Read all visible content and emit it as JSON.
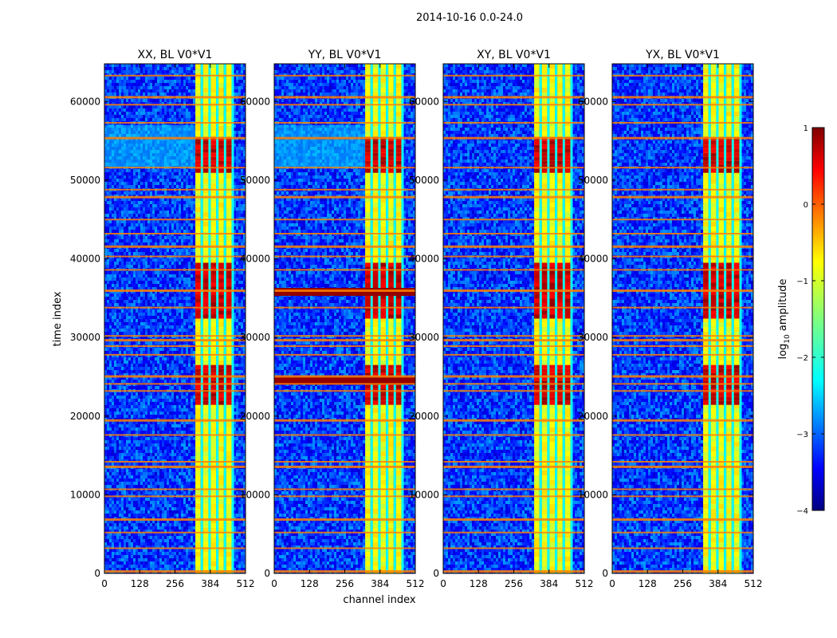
{
  "chart_data": {
    "type": "heatmap",
    "suptitle": "2014-10-16 0.0-24.0",
    "xlabel": "channel index",
    "ylabel": "time index",
    "xlim": [
      0,
      512
    ],
    "ylim": [
      0,
      64800
    ],
    "xticks": [
      0,
      128,
      256,
      384,
      512
    ],
    "yticks": [
      0,
      10000,
      20000,
      30000,
      40000,
      50000,
      60000
    ],
    "panels": [
      {
        "title": "XX, BL V0*V1",
        "pol": "XX"
      },
      {
        "title": "YY, BL V0*V1",
        "pol": "YY"
      },
      {
        "title": "XY, BL V0*V1",
        "pol": "XY"
      },
      {
        "title": "YX, BL V0*V1",
        "pol": "YX"
      }
    ],
    "colorbar": {
      "label": "log10 amplitude",
      "label_base": "log",
      "label_sub": "10",
      "label_rest": " amplitude",
      "range": [
        -4,
        1
      ],
      "ticks": [
        "1",
        "0",
        "−1",
        "−2",
        "−3",
        "−4"
      ],
      "tick_values": [
        1,
        0,
        -1,
        -2,
        -3,
        -4
      ],
      "colormap": "jet"
    },
    "signal_band_channels": [
      330,
      470
    ],
    "bright_time_ranges": [
      [
        51000,
        55500
      ],
      [
        32500,
        39500
      ],
      [
        21500,
        26500
      ]
    ],
    "strong_rfi_time_rows_YY": [
      24500,
      35800
    ],
    "flagged_time_rows": [
      300,
      3200,
      5200,
      6900,
      9800,
      10700,
      13600,
      14200,
      17600,
      19500,
      23200,
      24100,
      25100,
      27800,
      28900,
      29700,
      30200,
      33800,
      36000,
      38600,
      40300,
      41600,
      43200,
      45000,
      47900,
      48800,
      51600,
      55400,
      57300,
      59600,
      60600,
      63300
    ]
  }
}
